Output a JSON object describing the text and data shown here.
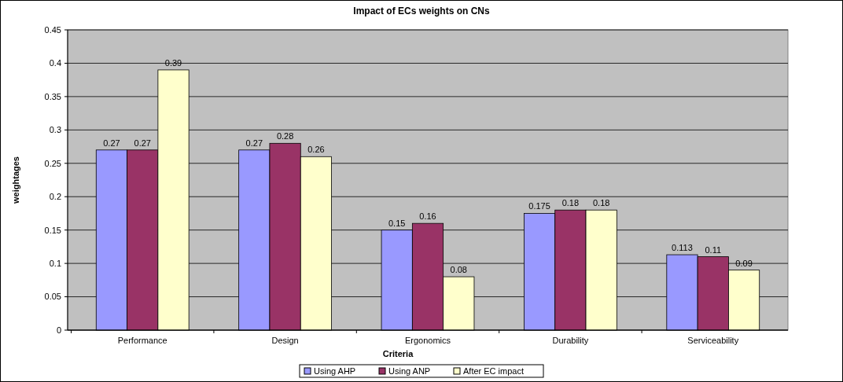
{
  "chart_data": {
    "type": "bar",
    "title": "Impact of ECs weights on CNs",
    "xlabel": "Criteria",
    "ylabel": "weightages",
    "categories": [
      "Performance",
      "Design",
      "Ergonomics",
      "Durability",
      "Serviceability"
    ],
    "series": [
      {
        "name": "Using AHP",
        "color": "#9999ff",
        "values": [
          0.27,
          0.27,
          0.15,
          0.175,
          0.113
        ]
      },
      {
        "name": "Using ANP",
        "color": "#993366",
        "values": [
          0.27,
          0.28,
          0.16,
          0.18,
          0.11
        ]
      },
      {
        "name": "After EC impact",
        "color": "#ffffcc",
        "values": [
          0.39,
          0.26,
          0.08,
          0.18,
          0.09
        ]
      }
    ],
    "ylim": [
      0,
      0.45
    ],
    "yticks": [
      0,
      0.05,
      0.1,
      0.15,
      0.2,
      0.25,
      0.3,
      0.35,
      0.4,
      0.45
    ],
    "grid": "y",
    "legend": "bottom",
    "data_labels": true
  }
}
